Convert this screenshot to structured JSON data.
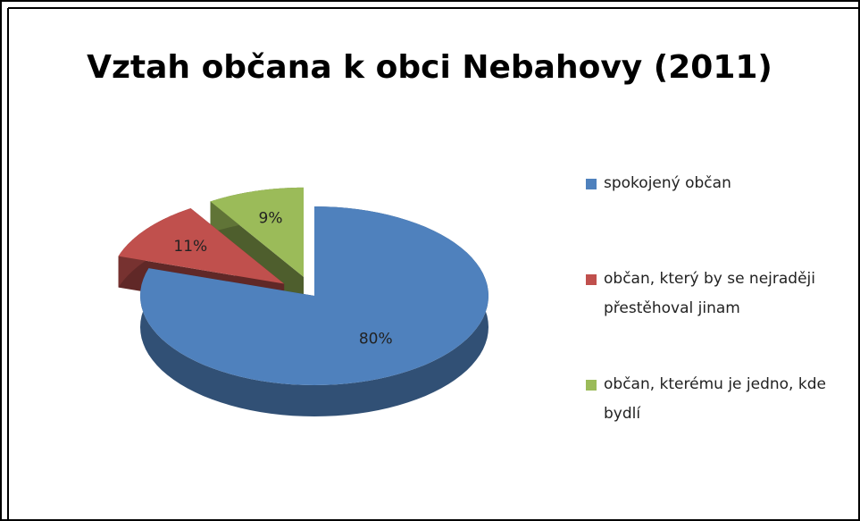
{
  "chart_data": {
    "type": "pie3d",
    "title": "Vztah občana k obci Nebahovy (2011)",
    "categories": [
      "spokojený občan",
      "občan, který by se nejraději přestěhoval jinam",
      "občan, kterému je jedno, kde bydlí"
    ],
    "values": [
      80,
      11,
      9
    ],
    "value_labels": [
      "80%",
      "11%",
      "9%"
    ],
    "colors": [
      "#4f81bd",
      "#c0504d",
      "#9bbb59"
    ],
    "legend": "right"
  }
}
